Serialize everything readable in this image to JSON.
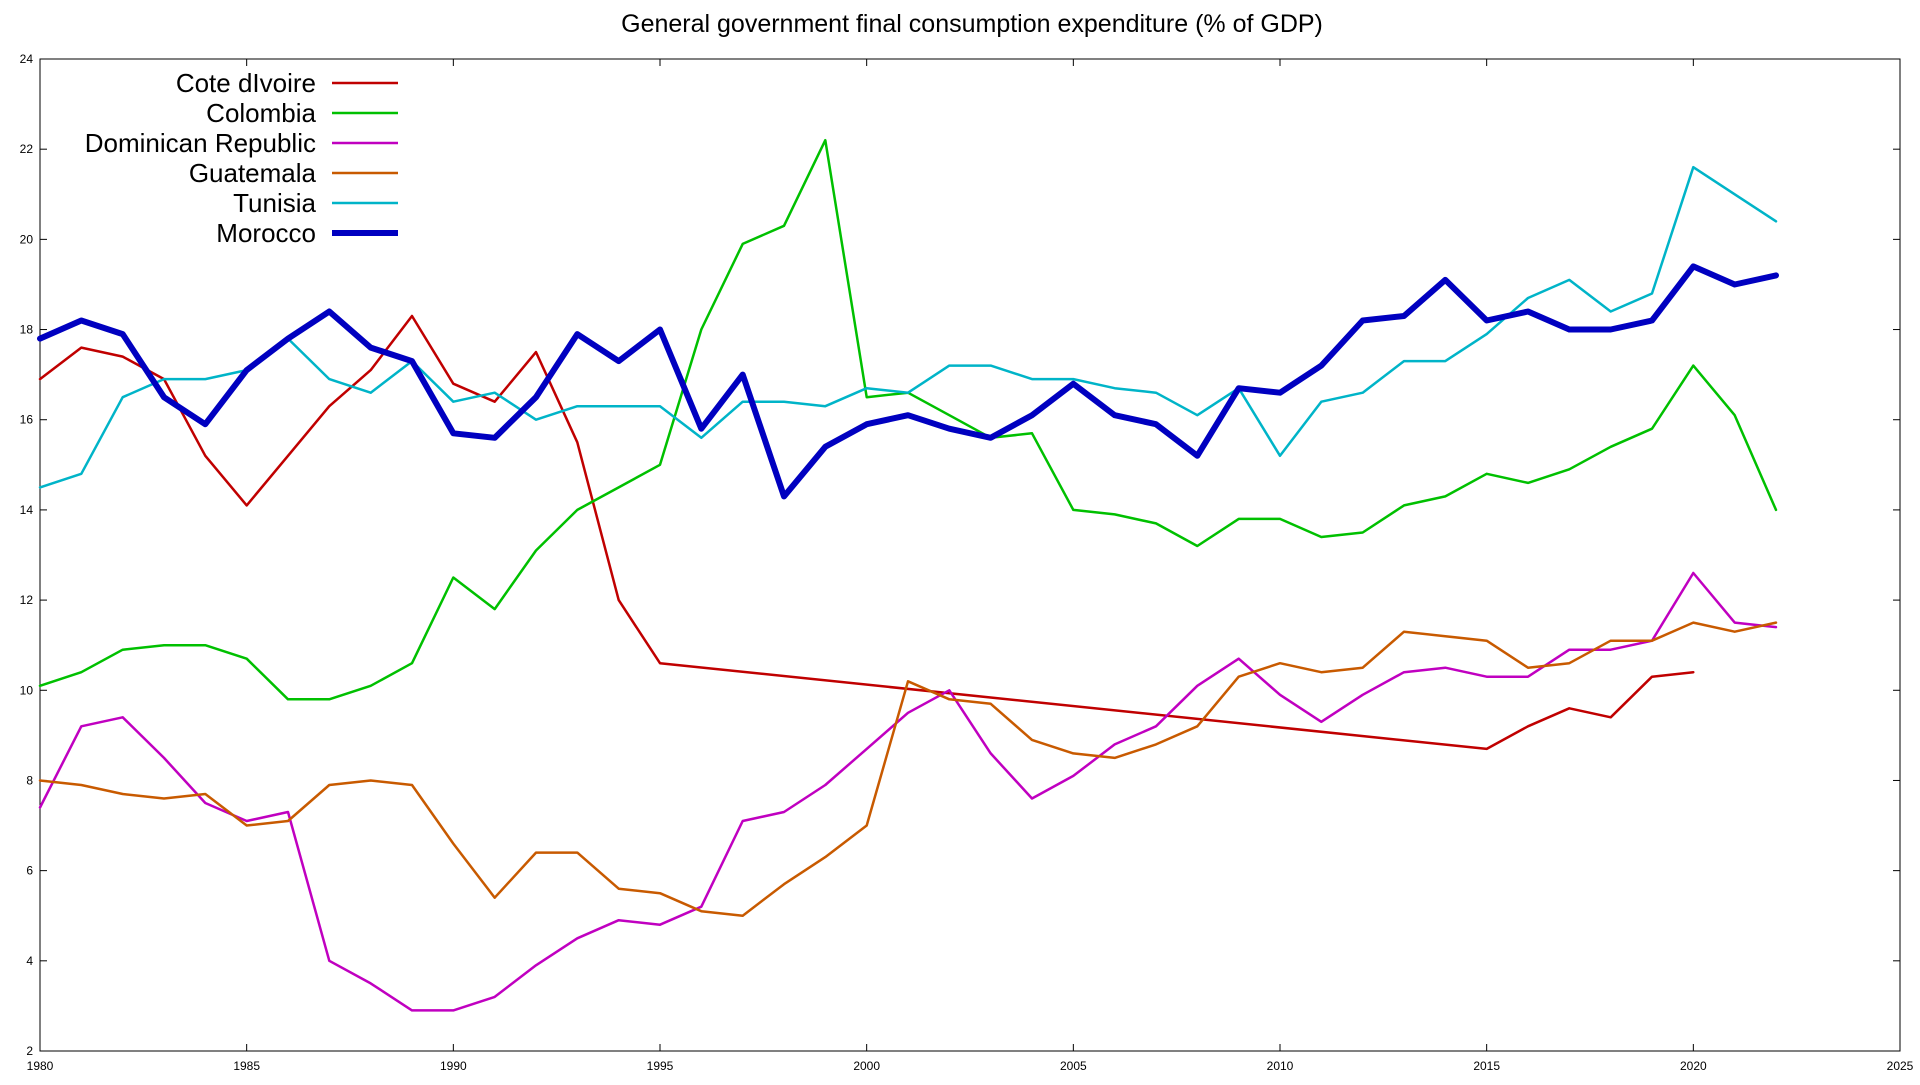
{
  "chart_data": {
    "type": "line",
    "title": "General government final consumption expenditure (% of GDP)",
    "xlabel": "",
    "ylabel": "",
    "xlim": [
      1980,
      2025
    ],
    "ylim": [
      2,
      24
    ],
    "x_ticks": [
      "1980",
      "1985",
      "1990",
      "1995",
      "2000",
      "2005",
      "2010",
      "2015",
      "2020",
      "2025"
    ],
    "y_ticks": [
      "2",
      "4",
      "6",
      "8",
      "10",
      "12",
      "14",
      "16",
      "18",
      "20",
      "22",
      "24"
    ],
    "grid": false,
    "legend_position": "top-left",
    "series": [
      {
        "name": "Cote dIvoire",
        "color": "#c00000",
        "bold": false,
        "points": [
          [
            1980,
            16.9
          ],
          [
            1981,
            17.6
          ],
          [
            1982,
            17.4
          ],
          [
            1983,
            16.9
          ],
          [
            1984,
            15.2
          ],
          [
            1985,
            14.1
          ],
          [
            1986,
            15.2
          ],
          [
            1987,
            16.3
          ],
          [
            1988,
            17.1
          ],
          [
            1989,
            18.3
          ],
          [
            1990,
            16.8
          ],
          [
            1991,
            16.4
          ],
          [
            1992,
            17.5
          ],
          [
            1993,
            15.5
          ],
          [
            1994,
            12.0
          ],
          [
            1995,
            10.6
          ],
          [
            2015,
            8.7
          ],
          [
            2016,
            9.2
          ],
          [
            2017,
            9.6
          ],
          [
            2018,
            9.4
          ],
          [
            2019,
            10.3
          ],
          [
            2020,
            10.4
          ]
        ]
      },
      {
        "name": "Colombia",
        "color": "#00c000",
        "bold": false,
        "points": [
          [
            1980,
            10.1
          ],
          [
            1981,
            10.4
          ],
          [
            1982,
            10.9
          ],
          [
            1983,
            11.0
          ],
          [
            1984,
            11.0
          ],
          [
            1985,
            10.7
          ],
          [
            1986,
            9.8
          ],
          [
            1987,
            9.8
          ],
          [
            1988,
            10.1
          ],
          [
            1989,
            10.6
          ],
          [
            1990,
            12.5
          ],
          [
            1991,
            11.8
          ],
          [
            1992,
            13.1
          ],
          [
            1993,
            14.0
          ],
          [
            1994,
            14.5
          ],
          [
            1995,
            15.0
          ],
          [
            1996,
            18.0
          ],
          [
            1997,
            19.9
          ],
          [
            1998,
            20.3
          ],
          [
            1999,
            22.2
          ],
          [
            2000,
            16.5
          ],
          [
            2001,
            16.6
          ],
          [
            2002,
            16.1
          ],
          [
            2003,
            15.6
          ],
          [
            2004,
            15.7
          ],
          [
            2005,
            14.0
          ],
          [
            2006,
            13.9
          ],
          [
            2007,
            13.7
          ],
          [
            2008,
            13.2
          ],
          [
            2009,
            13.8
          ],
          [
            2010,
            13.8
          ],
          [
            2011,
            13.4
          ],
          [
            2012,
            13.5
          ],
          [
            2013,
            14.1
          ],
          [
            2014,
            14.3
          ],
          [
            2015,
            14.8
          ],
          [
            2016,
            14.6
          ],
          [
            2017,
            14.9
          ],
          [
            2018,
            15.4
          ],
          [
            2019,
            15.8
          ],
          [
            2020,
            17.2
          ],
          [
            2021,
            16.1
          ],
          [
            2022,
            14.0
          ]
        ]
      },
      {
        "name": "Dominican Republic",
        "color": "#c000c0",
        "bold": false,
        "points": [
          [
            1980,
            7.4
          ],
          [
            1981,
            9.2
          ],
          [
            1982,
            9.4
          ],
          [
            1983,
            8.5
          ],
          [
            1984,
            7.5
          ],
          [
            1985,
            7.1
          ],
          [
            1986,
            7.3
          ],
          [
            1987,
            4.0
          ],
          [
            1988,
            3.5
          ],
          [
            1989,
            2.9
          ],
          [
            1990,
            2.9
          ],
          [
            1991,
            3.2
          ],
          [
            1992,
            3.9
          ],
          [
            1993,
            4.5
          ],
          [
            1994,
            4.9
          ],
          [
            1995,
            4.8
          ],
          [
            1996,
            5.2
          ],
          [
            1997,
            7.1
          ],
          [
            1998,
            7.3
          ],
          [
            1999,
            7.9
          ],
          [
            2000,
            8.7
          ],
          [
            2001,
            9.5
          ],
          [
            2002,
            10.0
          ],
          [
            2003,
            8.6
          ],
          [
            2004,
            7.6
          ],
          [
            2005,
            8.1
          ],
          [
            2006,
            8.8
          ],
          [
            2007,
            9.2
          ],
          [
            2008,
            10.1
          ],
          [
            2009,
            10.7
          ],
          [
            2010,
            9.9
          ],
          [
            2011,
            9.3
          ],
          [
            2012,
            9.9
          ],
          [
            2013,
            10.4
          ],
          [
            2014,
            10.5
          ],
          [
            2015,
            10.3
          ],
          [
            2016,
            10.3
          ],
          [
            2017,
            10.9
          ],
          [
            2018,
            10.9
          ],
          [
            2019,
            11.1
          ],
          [
            2020,
            12.6
          ],
          [
            2021,
            11.5
          ],
          [
            2022,
            11.4
          ]
        ]
      },
      {
        "name": "Guatemala",
        "color": "#c85a00",
        "bold": false,
        "points": [
          [
            1980,
            8.0
          ],
          [
            1981,
            7.9
          ],
          [
            1982,
            7.7
          ],
          [
            1983,
            7.6
          ],
          [
            1984,
            7.7
          ],
          [
            1985,
            7.0
          ],
          [
            1986,
            7.1
          ],
          [
            1987,
            7.9
          ],
          [
            1988,
            8.0
          ],
          [
            1989,
            7.9
          ],
          [
            1990,
            6.6
          ],
          [
            1991,
            5.4
          ],
          [
            1992,
            6.4
          ],
          [
            1993,
            6.4
          ],
          [
            1994,
            5.6
          ],
          [
            1995,
            5.5
          ],
          [
            1996,
            5.1
          ],
          [
            1997,
            5.0
          ],
          [
            1998,
            5.7
          ],
          [
            1999,
            6.3
          ],
          [
            2000,
            7.0
          ],
          [
            2001,
            10.2
          ],
          [
            2002,
            9.8
          ],
          [
            2003,
            9.7
          ],
          [
            2004,
            8.9
          ],
          [
            2005,
            8.6
          ],
          [
            2006,
            8.5
          ],
          [
            2007,
            8.8
          ],
          [
            2008,
            9.2
          ],
          [
            2009,
            10.3
          ],
          [
            2010,
            10.6
          ],
          [
            2011,
            10.4
          ],
          [
            2012,
            10.5
          ],
          [
            2013,
            11.3
          ],
          [
            2014,
            11.2
          ],
          [
            2015,
            11.1
          ],
          [
            2016,
            10.5
          ],
          [
            2017,
            10.6
          ],
          [
            2018,
            11.1
          ],
          [
            2019,
            11.1
          ],
          [
            2020,
            11.5
          ],
          [
            2021,
            11.3
          ],
          [
            2022,
            11.5
          ]
        ]
      },
      {
        "name": "Tunisia",
        "color": "#00b4c8",
        "bold": false,
        "points": [
          [
            1980,
            14.5
          ],
          [
            1981,
            14.8
          ],
          [
            1982,
            16.5
          ],
          [
            1983,
            16.9
          ],
          [
            1984,
            16.9
          ],
          [
            1985,
            17.1
          ],
          [
            1986,
            17.8
          ],
          [
            1987,
            16.9
          ],
          [
            1988,
            16.6
          ],
          [
            1989,
            17.3
          ],
          [
            1990,
            16.4
          ],
          [
            1991,
            16.6
          ],
          [
            1992,
            16.0
          ],
          [
            1993,
            16.3
          ],
          [
            1994,
            16.3
          ],
          [
            1995,
            16.3
          ],
          [
            1996,
            15.6
          ],
          [
            1997,
            16.4
          ],
          [
            1998,
            16.4
          ],
          [
            1999,
            16.3
          ],
          [
            2000,
            16.7
          ],
          [
            2001,
            16.6
          ],
          [
            2002,
            17.2
          ],
          [
            2003,
            17.2
          ],
          [
            2004,
            16.9
          ],
          [
            2005,
            16.9
          ],
          [
            2006,
            16.7
          ],
          [
            2007,
            16.6
          ],
          [
            2008,
            16.1
          ],
          [
            2009,
            16.7
          ],
          [
            2010,
            15.2
          ],
          [
            2011,
            16.4
          ],
          [
            2012,
            16.6
          ],
          [
            2013,
            17.3
          ],
          [
            2014,
            17.3
          ],
          [
            2015,
            17.9
          ],
          [
            2016,
            18.7
          ],
          [
            2017,
            19.1
          ],
          [
            2018,
            18.4
          ],
          [
            2019,
            18.8
          ],
          [
            2020,
            21.6
          ],
          [
            2021,
            21.0
          ],
          [
            2022,
            20.4
          ]
        ]
      },
      {
        "name": "Morocco",
        "color": "#0000c0",
        "bold": true,
        "points": [
          [
            1980,
            17.8
          ],
          [
            1981,
            18.2
          ],
          [
            1982,
            17.9
          ],
          [
            1983,
            16.5
          ],
          [
            1984,
            15.9
          ],
          [
            1985,
            17.1
          ],
          [
            1986,
            17.8
          ],
          [
            1987,
            18.4
          ],
          [
            1988,
            17.6
          ],
          [
            1989,
            17.3
          ],
          [
            1990,
            15.7
          ],
          [
            1991,
            15.6
          ],
          [
            1992,
            16.5
          ],
          [
            1993,
            17.9
          ],
          [
            1994,
            17.3
          ],
          [
            1995,
            18.0
          ],
          [
            1996,
            15.8
          ],
          [
            1997,
            17.0
          ],
          [
            1998,
            14.3
          ],
          [
            1999,
            15.4
          ],
          [
            2000,
            15.9
          ],
          [
            2001,
            16.1
          ],
          [
            2002,
            15.8
          ],
          [
            2003,
            15.6
          ],
          [
            2004,
            16.1
          ],
          [
            2005,
            16.8
          ],
          [
            2006,
            16.1
          ],
          [
            2007,
            15.9
          ],
          [
            2008,
            15.2
          ],
          [
            2009,
            16.7
          ],
          [
            2010,
            16.6
          ],
          [
            2011,
            17.2
          ],
          [
            2012,
            18.2
          ],
          [
            2013,
            18.3
          ],
          [
            2014,
            19.1
          ],
          [
            2015,
            18.2
          ],
          [
            2016,
            18.4
          ],
          [
            2017,
            18.0
          ],
          [
            2018,
            18.0
          ],
          [
            2019,
            18.2
          ],
          [
            2020,
            19.4
          ],
          [
            2021,
            19.0
          ],
          [
            2022,
            19.2
          ]
        ]
      }
    ]
  }
}
